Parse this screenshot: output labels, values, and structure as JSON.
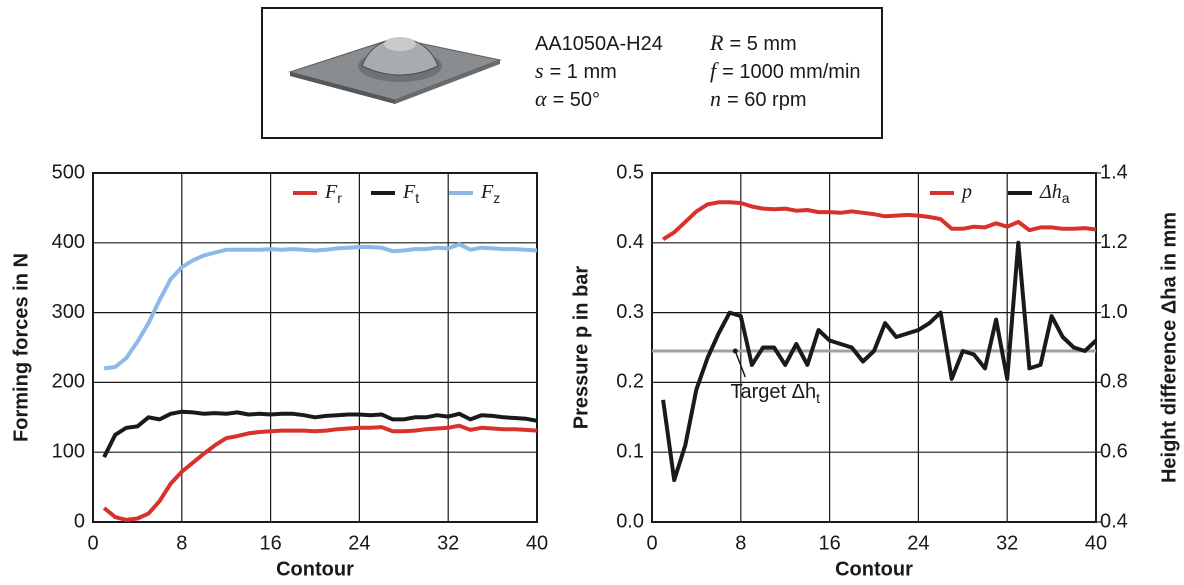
{
  "parameters": [
    {
      "text": "AA1050A-H24"
    },
    {
      "symbol": "R",
      "text": "= 5 mm"
    },
    {
      "symbol": "s",
      "text": "= 1 mm"
    },
    {
      "symbol": "f",
      "text": "= 1000 mm/min"
    },
    {
      "symbol": "α",
      "text": "= 50°"
    },
    {
      "symbol": "n",
      "text": "= 60 rpm"
    }
  ],
  "chart_data": [
    {
      "type": "line",
      "xlabel": "Contour",
      "ylabel": "Forming forces in N",
      "x": [
        1,
        2,
        3,
        4,
        5,
        6,
        7,
        8,
        9,
        10,
        11,
        12,
        13,
        14,
        15,
        16,
        17,
        18,
        19,
        20,
        21,
        22,
        23,
        24,
        25,
        26,
        27,
        28,
        29,
        30,
        31,
        32,
        33,
        34,
        35,
        36,
        37,
        38,
        39,
        40
      ],
      "xlim": [
        0,
        40
      ],
      "xticks": [
        0,
        8,
        16,
        24,
        32,
        40
      ],
      "ylim": [
        0,
        500
      ],
      "yticks": [
        0,
        100,
        200,
        300,
        400,
        500
      ],
      "grid": true,
      "legend": "upper right",
      "series": [
        {
          "name": "F",
          "subscript": "r",
          "color": "#d9312b",
          "values": [
            20,
            7,
            3,
            5,
            12,
            30,
            55,
            72,
            85,
            98,
            110,
            120,
            123,
            127,
            129,
            130,
            131,
            131,
            131,
            130,
            131,
            133,
            134,
            135,
            135,
            136,
            130,
            130,
            131,
            133,
            134,
            135,
            138,
            132,
            135,
            134,
            133,
            133,
            132,
            131
          ]
        },
        {
          "name": "F",
          "subscript": "t",
          "color": "#1a1a1a",
          "values": [
            93,
            125,
            135,
            137,
            150,
            147,
            155,
            158,
            157,
            155,
            156,
            155,
            157,
            154,
            155,
            154,
            155,
            155,
            153,
            150,
            152,
            153,
            154,
            154,
            153,
            154,
            147,
            147,
            150,
            150,
            153,
            151,
            155,
            147,
            153,
            152,
            150,
            149,
            148,
            145
          ]
        },
        {
          "name": "F",
          "subscript": "z",
          "color": "#8db8e8",
          "values": [
            220,
            222,
            235,
            258,
            285,
            318,
            348,
            365,
            375,
            382,
            386,
            390,
            390,
            390,
            390,
            391,
            390,
            391,
            390,
            389,
            390,
            392,
            393,
            394,
            394,
            393,
            388,
            389,
            391,
            391,
            393,
            392,
            398,
            390,
            393,
            392,
            391,
            391,
            390,
            389
          ]
        }
      ]
    },
    {
      "type": "line",
      "xlabel": "Contour",
      "ylabel": "Pressure p in bar",
      "y2label": "Height difference Δha in mm",
      "x": [
        1,
        2,
        3,
        4,
        5,
        6,
        7,
        8,
        9,
        10,
        11,
        12,
        13,
        14,
        15,
        16,
        17,
        18,
        19,
        20,
        21,
        22,
        23,
        24,
        25,
        26,
        27,
        28,
        29,
        30,
        31,
        32,
        33,
        34,
        35,
        36,
        37,
        38,
        39,
        40
      ],
      "xlim": [
        0,
        40
      ],
      "xticks": [
        0,
        8,
        16,
        24,
        32,
        40
      ],
      "ylim": [
        0,
        0.5
      ],
      "yticks": [
        {
          "value": 0,
          "label": "0.0"
        },
        0.1,
        0.2,
        0.3,
        0.4,
        0.5
      ],
      "y2lim": [
        0.4,
        1.4
      ],
      "y2ticks": [
        0.4,
        0.6,
        0.8,
        {
          "value": 1,
          "label": "1.0"
        },
        1.2,
        1.4
      ],
      "grid": true,
      "legend": "upper right",
      "reference_line": {
        "value": 0.89,
        "axis": "y2",
        "color": "#a0a0a0",
        "label": "Target Δh",
        "label_subscript": "t"
      },
      "series": [
        {
          "name": "p",
          "color": "#d9312b",
          "values": [
            0.405,
            0.415,
            0.43,
            0.445,
            0.455,
            0.458,
            0.458,
            0.457,
            0.452,
            0.449,
            0.448,
            0.449,
            0.446,
            0.447,
            0.444,
            0.444,
            0.443,
            0.445,
            0.443,
            0.441,
            0.438,
            0.439,
            0.44,
            0.439,
            0.437,
            0.434,
            0.42,
            0.42,
            0.423,
            0.422,
            0.428,
            0.423,
            0.43,
            0.418,
            0.422,
            0.422,
            0.42,
            0.42,
            0.421,
            0.419
          ]
        },
        {
          "name": "Δh",
          "subscript": "a",
          "color": "#1a1a1a",
          "axis": "y2",
          "values": [
            0.75,
            0.52,
            0.62,
            0.78,
            0.87,
            0.94,
            1.0,
            0.99,
            0.85,
            0.9,
            0.9,
            0.85,
            0.91,
            0.85,
            0.95,
            0.92,
            0.91,
            0.9,
            0.86,
            0.89,
            0.97,
            0.93,
            0.94,
            0.95,
            0.97,
            1.0,
            0.81,
            0.89,
            0.88,
            0.84,
            0.98,
            0.81,
            1.2,
            0.84,
            0.85,
            0.99,
            0.93,
            0.9,
            0.89,
            0.92
          ]
        }
      ]
    }
  ]
}
